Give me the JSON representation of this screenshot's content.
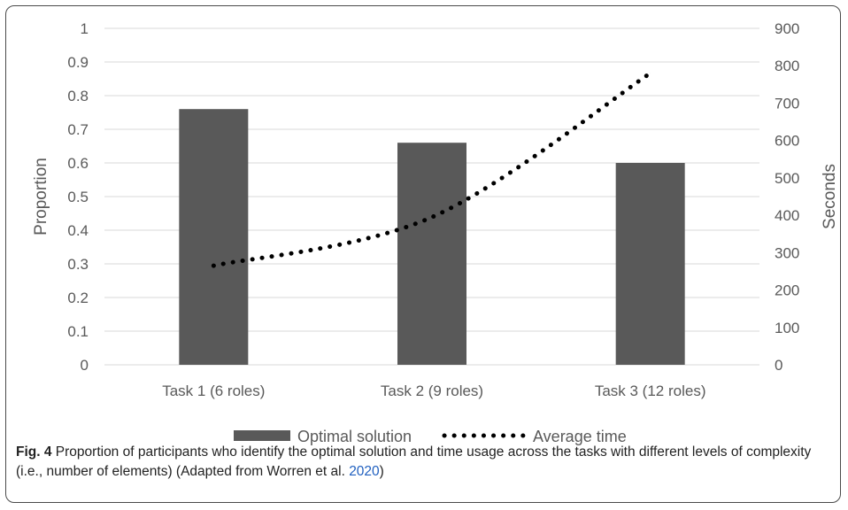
{
  "chart_data": {
    "type": "bar",
    "categories": [
      "Task 1 (6 roles)",
      "Task 2 (9 roles)",
      "Task 3 (12 roles)"
    ],
    "series": [
      {
        "name": "Optimal solution",
        "type": "bar",
        "axis": "left",
        "values": [
          0.76,
          0.66,
          0.6
        ],
        "color": "#595959"
      },
      {
        "name": "Average time",
        "type": "line",
        "style": "dotted",
        "axis": "right",
        "values": [
          265,
          395,
          780
        ],
        "color": "#000000"
      }
    ],
    "ylabel": "Proportion",
    "ylim": [
      0,
      1
    ],
    "yticks": [
      "0",
      "0.1",
      "0.2",
      "0.3",
      "0.4",
      "0.5",
      "0.6",
      "0.7",
      "0.8",
      "0.9",
      "1"
    ],
    "y2label": "Seconds",
    "y2lim": [
      0,
      900
    ],
    "y2ticks": [
      "0",
      "100",
      "200",
      "300",
      "400",
      "500",
      "600",
      "700",
      "800",
      "900"
    ],
    "grid": true,
    "legend_position": "bottom"
  },
  "caption": {
    "fig_label": "Fig. 4",
    "text": " Proportion of participants who identify the optimal solution and time usage across the tasks with different levels of complexity (i.e., number of elements) (Adapted from Worren et al. ",
    "cite_year": "2020",
    "close": ")"
  }
}
